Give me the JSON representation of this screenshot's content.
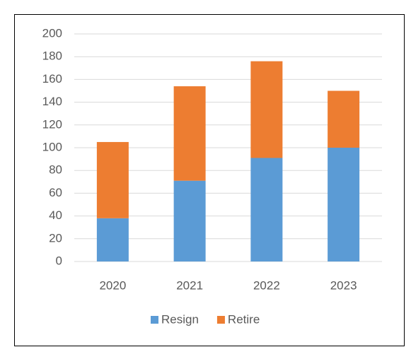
{
  "chart_data": {
    "type": "stacked_bar",
    "categories": [
      "2020",
      "2021",
      "2022",
      "2023"
    ],
    "series": [
      {
        "name": "Resign",
        "color": "#5b9bd5",
        "values": [
          38,
          71,
          91,
          100
        ]
      },
      {
        "name": "Retire",
        "color": "#ed7d31",
        "values": [
          67,
          83,
          85,
          50
        ]
      }
    ],
    "ylim": [
      0,
      200
    ],
    "yticks": [
      0,
      20,
      40,
      60,
      80,
      100,
      120,
      140,
      160,
      180,
      200
    ],
    "grid": true,
    "legend": "bottom"
  }
}
